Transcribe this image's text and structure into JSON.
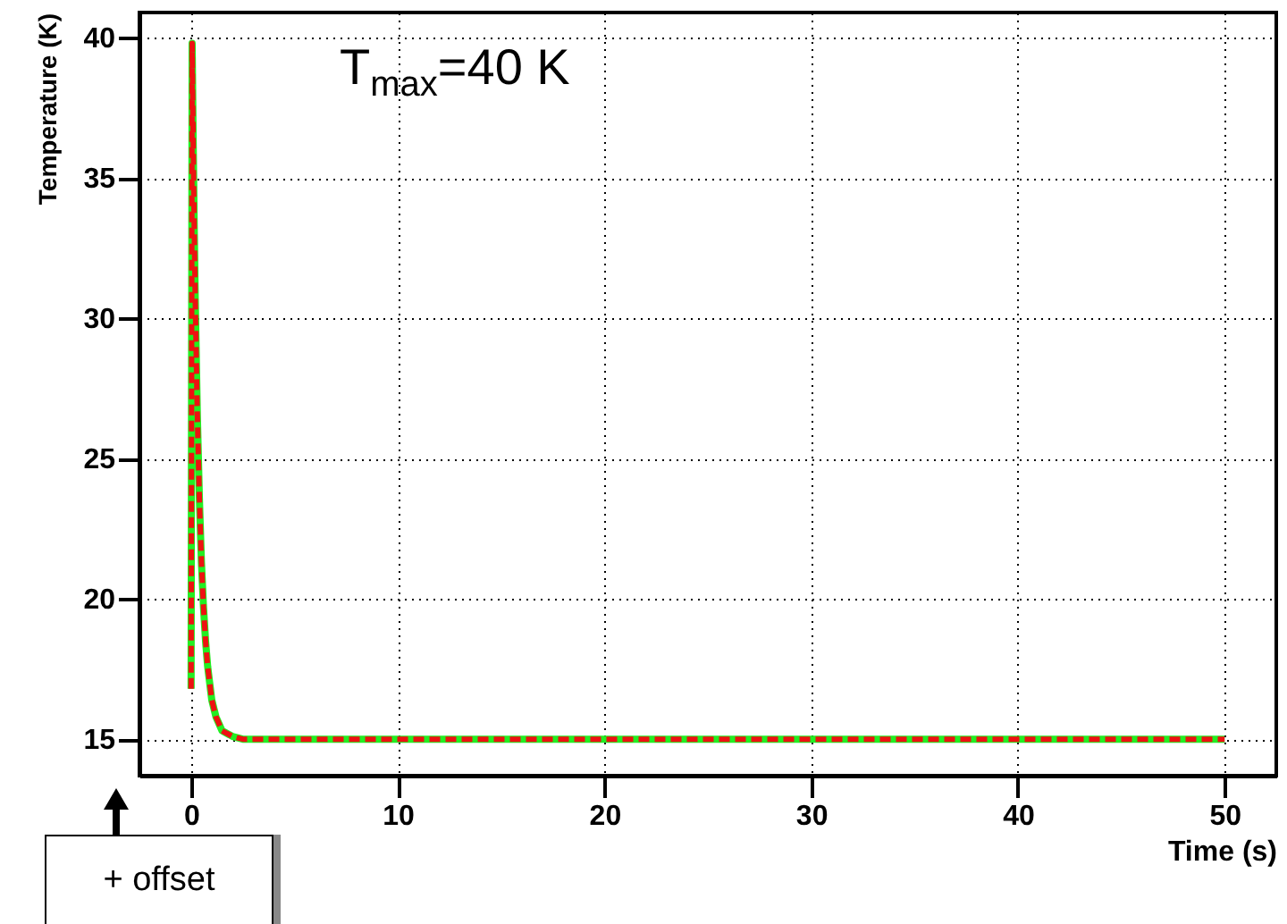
{
  "chart_data": {
    "type": "line",
    "xlabel": "Time (s)",
    "ylabel": "Temperature (K)",
    "x": [
      0,
      0.05,
      0.1,
      0.15,
      0.2,
      0.3,
      0.4,
      0.5,
      0.6,
      0.7,
      0.8,
      1.0,
      1.2,
      1.5,
      2,
      2.5,
      3,
      5,
      10,
      20,
      30,
      40,
      50
    ],
    "series": [
      {
        "color": "#22ee22",
        "line_style": "solid",
        "values": [
          16.8,
          39.8,
          36.3,
          33.3,
          30.7,
          26.6,
          23.6,
          21.3,
          19.7,
          18.5,
          17.6,
          16.4,
          15.8,
          15.3,
          15.1,
          15,
          15,
          15,
          15,
          15,
          15,
          15,
          15
        ]
      },
      {
        "color": "#ee1111",
        "line_style": "dashed",
        "values": [
          16.8,
          39.8,
          36.3,
          33.3,
          30.7,
          26.6,
          23.6,
          21.3,
          19.7,
          18.5,
          17.6,
          16.4,
          15.8,
          15.3,
          15.1,
          15,
          15,
          15,
          15,
          15,
          15,
          15,
          15
        ]
      }
    ],
    "xlim": [
      -2.5,
      52.5
    ],
    "xticks": [
      0,
      10,
      20,
      30,
      40,
      50
    ],
    "ylim": [
      13.7,
      40.9
    ],
    "yticks": [
      15,
      20,
      25,
      30,
      35,
      40
    ],
    "grid": true,
    "annotations": [
      "T$_{max}$=40 K",
      "+ offset"
    ]
  }
}
